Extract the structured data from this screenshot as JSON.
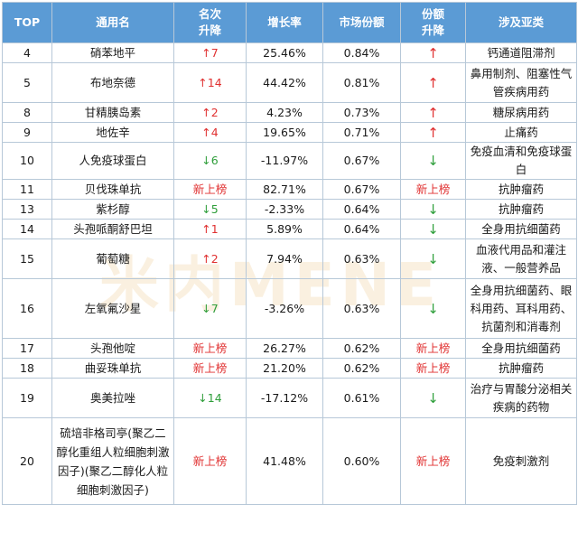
{
  "header": {
    "top": "TOP",
    "name": "通用名",
    "rank_change": "名次\n升降",
    "growth": "增长率",
    "share": "市场份额",
    "share_change": "份额\n升降",
    "area": "涉及亚类"
  },
  "rows": [
    {
      "top": "4",
      "name": "硝苯地平",
      "rank": "↑7",
      "growth": "25.46%",
      "share": "0.84%",
      "sc": "↑",
      "area": "钙通道阻滞剂"
    },
    {
      "top": "5",
      "name": "布地奈德",
      "rank": "↑14",
      "growth": "44.42%",
      "share": "0.81%",
      "sc": "↑",
      "area": "鼻用制剂、阻塞性气管疾病用药"
    },
    {
      "top": "8",
      "name": "甘精胰岛素",
      "rank": "↑2",
      "growth": "4.23%",
      "share": "0.73%",
      "sc": "↑",
      "area": "糖尿病用药"
    },
    {
      "top": "9",
      "name": "地佐辛",
      "rank": "↑4",
      "growth": "19.65%",
      "share": "0.71%",
      "sc": "↑",
      "area": "止痛药"
    },
    {
      "top": "10",
      "name": "人免疫球蛋白",
      "rank": "↓6",
      "growth": "-11.97%",
      "share": "0.67%",
      "sc": "↓",
      "area": "免疫血清和免疫球蛋白"
    },
    {
      "top": "11",
      "name": "贝伐珠单抗",
      "rank": "新上榜",
      "growth": "82.71%",
      "share": "0.67%",
      "sc": "新上榜",
      "area": "抗肿瘤药"
    },
    {
      "top": "13",
      "name": "紫杉醇",
      "rank": "↓5",
      "growth": "-2.33%",
      "share": "0.64%",
      "sc": "↓",
      "area": "抗肿瘤药"
    },
    {
      "top": "14",
      "name": "头孢哌酮舒巴坦",
      "rank": "↑1",
      "growth": "5.89%",
      "share": "0.64%",
      "sc": "↓",
      "area": "全身用抗细菌药"
    },
    {
      "top": "15",
      "name": "葡萄糖",
      "rank": "↑2",
      "growth": "7.94%",
      "share": "0.63%",
      "sc": "↓",
      "area": "血液代用品和灌注液、一般营养品"
    },
    {
      "top": "16",
      "name": "左氧氟沙星",
      "rank": "↓7",
      "growth": "-3.26%",
      "share": "0.63%",
      "sc": "↓",
      "area": "全身用抗细菌药、眼科用药、耳科用药、抗菌剂和消毒剂"
    },
    {
      "top": "17",
      "name": "头孢他啶",
      "rank": "新上榜",
      "growth": "26.27%",
      "share": "0.62%",
      "sc": "新上榜",
      "area": "全身用抗细菌药"
    },
    {
      "top": "18",
      "name": "曲妥珠单抗",
      "rank": "新上榜",
      "growth": "21.20%",
      "share": "0.62%",
      "sc": "新上榜",
      "area": "抗肿瘤药"
    },
    {
      "top": "19",
      "name": "奥美拉唑",
      "rank": "↓14",
      "growth": "-17.12%",
      "share": "0.61%",
      "sc": "↓",
      "area": "治疗与胃酸分泌相关疾病的药物"
    },
    {
      "top": "20",
      "name": "硫培非格司亭(聚乙二醇化重组人粒细胞刺激因子)(聚乙二醇化人粒细胞刺激因子)",
      "rank": "新上榜",
      "growth": "41.48%",
      "share": "0.60%",
      "sc": "新上榜",
      "area": "免疫刺激剂"
    }
  ],
  "watermark": "米内MENE",
  "colors": {
    "header_bg": "#5b9bd5",
    "up": "#e03030",
    "down": "#2e9e3a",
    "border": "#b7c8d8"
  }
}
